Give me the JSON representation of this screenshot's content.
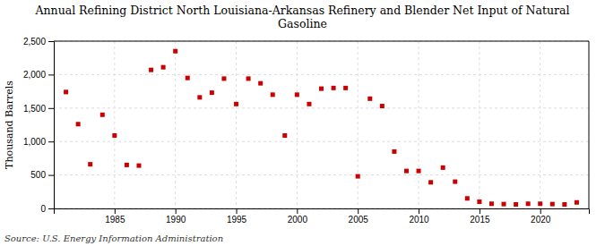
{
  "chart_data": {
    "type": "scatter",
    "title": "Annual Refining District North Louisiana-Arkansas Refinery and Blender Net Input of Natural\nGasoline",
    "ylabel": "Thousand Barrels",
    "annotations": [
      "Source: U.S. Energy Information Administration"
    ],
    "x": [
      1981,
      1982,
      1983,
      1984,
      1985,
      1986,
      1987,
      1988,
      1989,
      1990,
      1991,
      1992,
      1993,
      1994,
      1995,
      1996,
      1997,
      1998,
      1999,
      2000,
      2001,
      2002,
      2003,
      2004,
      2005,
      2006,
      2007,
      2008,
      2009,
      2010,
      2011,
      2012,
      2013,
      2014,
      2015,
      2016,
      2017,
      2018,
      2019,
      2020,
      2021,
      2022,
      2023
    ],
    "values": [
      1740,
      1260,
      660,
      1400,
      1090,
      650,
      640,
      2070,
      2110,
      2350,
      1950,
      1660,
      1730,
      1940,
      1560,
      1940,
      1870,
      1700,
      1090,
      1700,
      1560,
      1790,
      1800,
      1800,
      480,
      1640,
      1530,
      850,
      560,
      560,
      390,
      610,
      400,
      150,
      100,
      70,
      65,
      60,
      70,
      70,
      65,
      60,
      90
    ],
    "color": "#cc0000",
    "marker": "square",
    "xlim": [
      1980,
      2024
    ],
    "xticks": [
      1985,
      1990,
      1995,
      2000,
      2005,
      2010,
      2015,
      2020
    ],
    "ylim": [
      0,
      2500
    ],
    "yticks": [
      0,
      500,
      {
        "value": 1000,
        "label": "1,000"
      },
      {
        "value": 1500,
        "label": "1,500"
      },
      {
        "value": 2000,
        "label": "2,000"
      },
      {
        "value": 2500,
        "label": "2,500"
      }
    ],
    "grid": true
  }
}
